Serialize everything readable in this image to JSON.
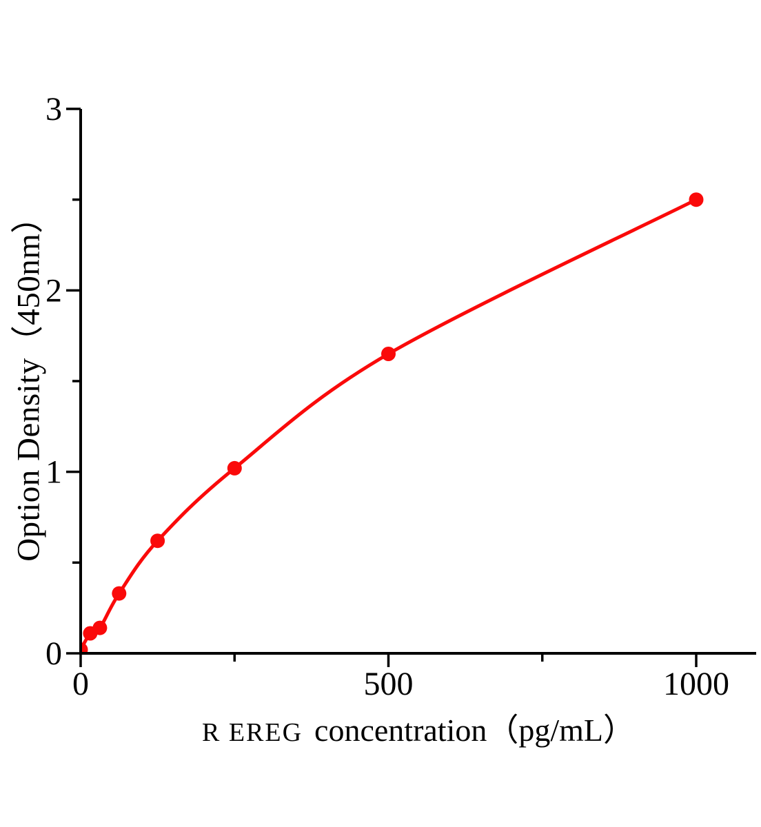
{
  "figure": {
    "background": "#ffffff"
  },
  "chart_data": {
    "type": "scatter",
    "title": "",
    "xlabel": {
      "prefix": "R EREG",
      "suffix": "concentration（pg/mL）"
    },
    "ylabel": "Option Density（450nm）",
    "x": [
      0,
      15.6,
      31.2,
      62.5,
      125,
      250,
      500,
      1000
    ],
    "y": [
      0.02,
      0.11,
      0.14,
      0.33,
      0.62,
      1.02,
      1.65,
      2.5
    ],
    "x_axis": {
      "min": 0,
      "max": 1100,
      "major_ticks": [
        0,
        500,
        1000
      ],
      "tick_labels": [
        "0",
        "500",
        "1000"
      ],
      "minor_ticks": [
        250,
        750
      ]
    },
    "y_axis": {
      "min": 0,
      "max": 3,
      "major_ticks": [
        0,
        1,
        2,
        3
      ],
      "tick_labels": [
        "0",
        "1",
        "2",
        "3"
      ],
      "minor_ticks": [
        0.5,
        1.5,
        2.5
      ]
    },
    "grid": false,
    "legend_position": "none",
    "curve_color": "#fa0a0a",
    "marker_color": "#fa0a0a",
    "axis_color": "#000000",
    "text_color": "#000000"
  }
}
